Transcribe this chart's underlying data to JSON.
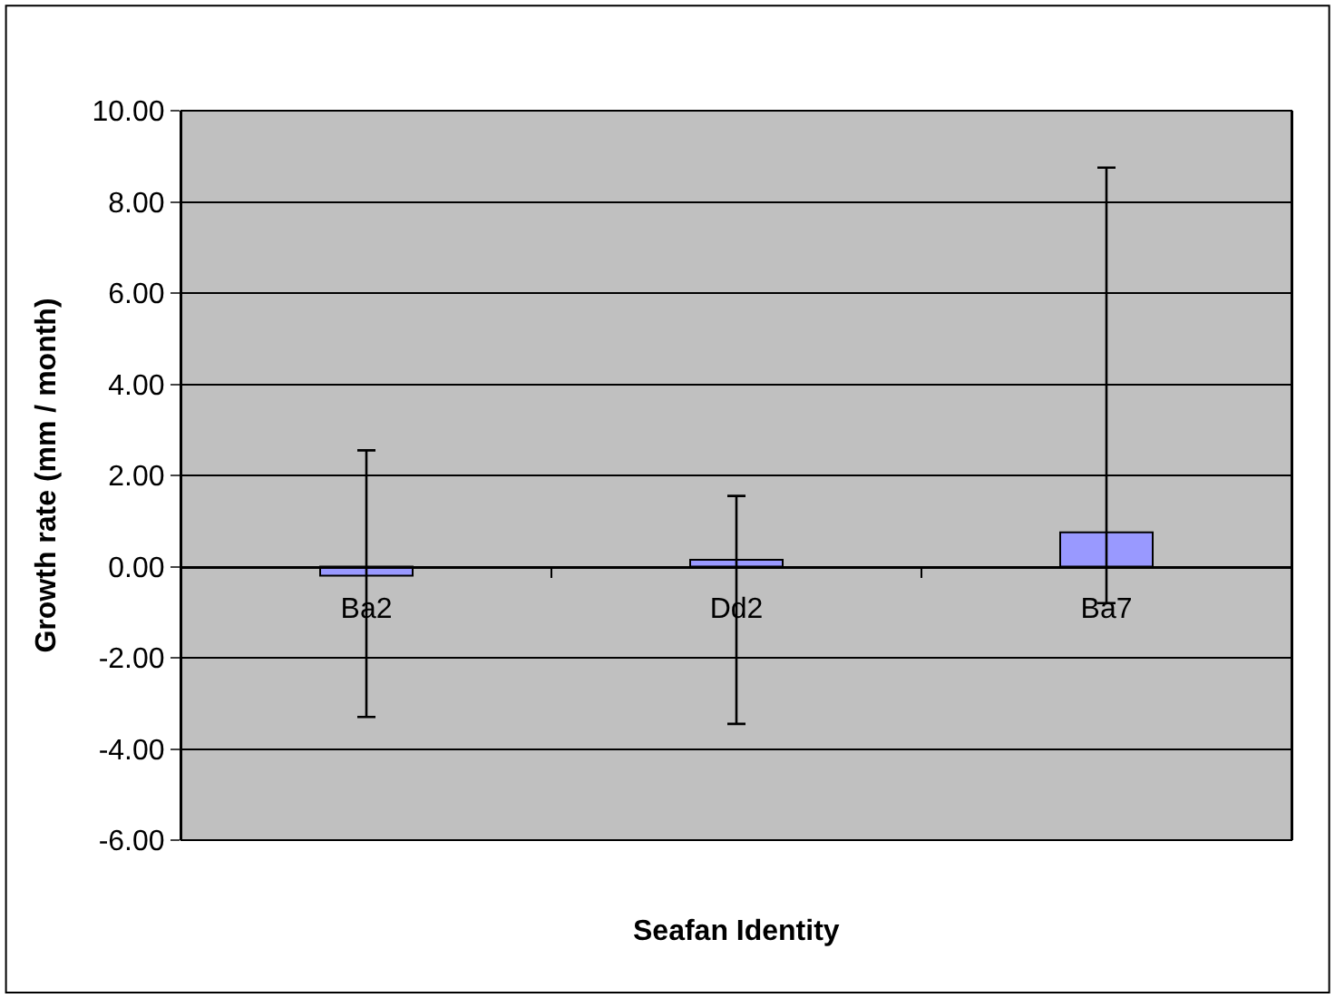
{
  "chart_data": {
    "type": "bar",
    "xlabel": "Seafan Identity",
    "ylabel": "Growth rate (mm / month)",
    "categories": [
      "Ba2",
      "Dd2",
      "Ba7"
    ],
    "values": [
      -0.2,
      0.15,
      0.75
    ],
    "errors": [
      [
        -3.3,
        2.55
      ],
      [
        -3.45,
        1.55
      ],
      [
        -0.8,
        8.75
      ]
    ],
    "color": "#9999ff",
    "ylim": [
      -6,
      10
    ],
    "yticks": [
      {
        "value": -6,
        "label": "-6.00"
      },
      {
        "value": -4,
        "label": "-4.00"
      },
      {
        "value": -2,
        "label": "-2.00"
      },
      {
        "value": 0,
        "label": "0.00"
      },
      {
        "value": 2,
        "label": "2.00"
      },
      {
        "value": 4,
        "label": "4.00"
      },
      {
        "value": 6,
        "label": "6.00"
      },
      {
        "value": 8,
        "label": "8.00"
      },
      {
        "value": 10,
        "label": "10.00"
      }
    ],
    "grid": "y",
    "legend": false
  }
}
